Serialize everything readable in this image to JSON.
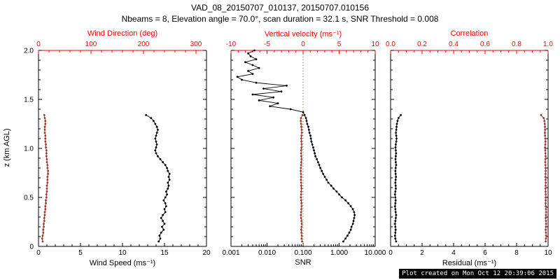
{
  "header": {
    "title": "VAD_08_20150707_010137, 20150707.010156",
    "subtitle": "Nbeams = 8, Elevation angle = 70.0°, scan duration = 32.1 s, SNR Threshold = 0.008"
  },
  "footer": {
    "text": "Plot created on Mon Oct 12 20:39:06 2015"
  },
  "colors": {
    "axis_red": "#ff0000",
    "data_black": "#000000",
    "data_red": "#a0342a",
    "ref_line_red": "#cc4422"
  },
  "chart_data": [
    {
      "type": "line",
      "name": "wind-speed-and-direction-profile",
      "y_axis": {
        "label": "z (km AGL)",
        "range": [
          0,
          2
        ],
        "ticks": [
          0,
          0.5,
          1,
          1.5,
          2
        ],
        "tick_labels": [
          "0",
          "0.5",
          "1.0",
          "1.5",
          "2.0"
        ],
        "minor_step": 0.1
      },
      "bottom_axis": {
        "label": "Wind Speed (ms⁻¹)",
        "range": [
          0,
          20
        ],
        "ticks": [
          0,
          5,
          10,
          15,
          20
        ],
        "tick_labels": [
          "0",
          "5",
          "10",
          "15",
          "20"
        ],
        "minor_step": 1,
        "color": "#000000"
      },
      "top_axis": {
        "label": "Wind Direction (deg)",
        "range": [
          0,
          320
        ],
        "ticks": [
          0,
          100,
          200,
          300
        ],
        "tick_labels": [
          "0",
          "100",
          "200",
          "300"
        ],
        "minor_step": 20,
        "color": "#ff0000"
      },
      "z": [
        0.05,
        0.08,
        0.11,
        0.14,
        0.17,
        0.2,
        0.23,
        0.26,
        0.29,
        0.32,
        0.35,
        0.38,
        0.41,
        0.44,
        0.47,
        0.5,
        0.53,
        0.56,
        0.59,
        0.62,
        0.65,
        0.68,
        0.71,
        0.74,
        0.77,
        0.8,
        0.83,
        0.86,
        0.89,
        0.92,
        0.95,
        0.98,
        1.01,
        1.04,
        1.07,
        1.1,
        1.13,
        1.16,
        1.19,
        1.22,
        1.25,
        1.28,
        1.31,
        1.34
      ],
      "series": [
        {
          "name": "wind_speed",
          "axis": "bottom",
          "color": "#000000",
          "values": [
            14.3,
            14.5,
            14.4,
            14.6,
            14.9,
            14.7,
            15.0,
            14.8,
            14.6,
            14.8,
            15.1,
            15.0,
            15.2,
            15.1,
            14.9,
            15.1,
            15.3,
            15.2,
            15.4,
            15.5,
            15.4,
            15.6,
            15.5,
            15.6,
            15.4,
            15.3,
            15.1,
            14.8,
            14.5,
            14.2,
            14.0,
            13.9,
            14.0,
            14.1,
            14.0,
            13.9,
            14.0,
            14.1,
            14.2,
            14.1,
            13.9,
            13.7,
            13.4,
            12.8
          ]
        },
        {
          "name": "wind_direction",
          "axis": "top",
          "color": "#a0342a",
          "values": [
            8,
            7,
            8,
            9,
            9,
            10,
            10,
            11,
            11,
            12,
            12,
            13,
            13,
            14,
            14,
            15,
            15,
            16,
            16,
            16,
            17,
            17,
            17,
            18,
            18,
            17,
            17,
            16,
            16,
            15,
            15,
            15,
            14,
            14,
            13,
            13,
            13,
            12,
            12,
            12,
            13,
            13,
            12,
            11
          ]
        }
      ]
    },
    {
      "type": "line",
      "name": "snr-and-vertical-velocity-profile",
      "y_axis": {
        "label": "z (km AGL)",
        "range": [
          0,
          2
        ],
        "ticks": [
          0,
          0.5,
          1,
          1.5,
          2
        ],
        "tick_labels": [
          "0",
          "0.5",
          "1.0",
          "1.5",
          "2.0"
        ],
        "minor_step": 0.1
      },
      "bottom_axis": {
        "label": "SNR",
        "scale": "log",
        "range": [
          0.001,
          10
        ],
        "ticks": [
          0.001,
          0.01,
          0.1,
          1,
          10
        ],
        "tick_labels": [
          "0.001",
          "0.010",
          "0.100",
          "1.000",
          "10.000"
        ],
        "color": "#000000"
      },
      "top_axis": {
        "label": "Vertical velocity (ms⁻¹)",
        "range": [
          -10,
          10
        ],
        "ticks": [
          -10,
          -5,
          0,
          5,
          10
        ],
        "tick_labels": [
          "-10",
          "-5",
          "0",
          "5",
          "10"
        ],
        "minor_step": 1,
        "color": "#ff0000"
      },
      "ref_line": {
        "axis": "top",
        "value": 0,
        "color": "#cc4422",
        "style": "dotted"
      },
      "z": [
        0.05,
        0.08,
        0.11,
        0.14,
        0.17,
        0.2,
        0.23,
        0.26,
        0.29,
        0.32,
        0.35,
        0.38,
        0.41,
        0.44,
        0.47,
        0.5,
        0.53,
        0.56,
        0.59,
        0.62,
        0.65,
        0.68,
        0.71,
        0.74,
        0.77,
        0.8,
        0.83,
        0.86,
        0.89,
        0.92,
        0.95,
        0.98,
        1.01,
        1.04,
        1.07,
        1.1,
        1.13,
        1.16,
        1.19,
        1.22,
        1.25,
        1.28,
        1.31,
        1.34
      ],
      "series": [
        {
          "name": "snr",
          "axis": "bottom",
          "color": "#000000",
          "z": [
            0.05,
            0.08,
            0.11,
            0.14,
            0.17,
            0.2,
            0.23,
            0.26,
            0.29,
            0.32,
            0.35,
            0.38,
            0.41,
            0.44,
            0.47,
            0.5,
            0.53,
            0.56,
            0.59,
            0.62,
            0.65,
            0.68,
            0.71,
            0.74,
            0.77,
            0.8,
            0.83,
            0.86,
            0.89,
            0.92,
            0.95,
            0.98,
            1.01,
            1.04,
            1.07,
            1.1,
            1.13,
            1.16,
            1.19,
            1.22,
            1.25,
            1.28,
            1.31,
            1.34,
            1.37,
            1.4,
            1.43,
            1.46,
            1.49,
            1.52,
            1.55,
            1.58,
            1.61,
            1.64,
            1.67,
            1.7,
            1.73,
            1.76,
            1.79,
            1.82,
            1.85,
            1.88,
            1.91,
            1.94,
            1.97,
            2.0
          ],
          "values": [
            1.3,
            1.5,
            1.7,
            1.9,
            2.1,
            2.2,
            2.4,
            2.5,
            2.6,
            2.7,
            2.6,
            2.4,
            2.1,
            1.8,
            1.5,
            1.2,
            1.0,
            0.85,
            0.7,
            0.6,
            0.5,
            0.45,
            0.4,
            0.36,
            0.33,
            0.3,
            0.28,
            0.26,
            0.24,
            0.22,
            0.21,
            0.2,
            0.19,
            0.18,
            0.17,
            0.165,
            0.16,
            0.15,
            0.145,
            0.14,
            0.13,
            0.125,
            0.12,
            0.11,
            0.1,
            0.045,
            0.012,
            0.02,
            0.006,
            0.015,
            0.004,
            0.025,
            0.008,
            0.035,
            0.005,
            0.002,
            0.0015,
            0.004,
            0.003,
            0.006,
            0.004,
            0.0025,
            0.005,
            0.0035,
            0.003,
            0.0045
          ]
        },
        {
          "name": "vertical_velocity",
          "axis": "top",
          "color": "#a0342a",
          "values": [
            -0.15,
            -0.2,
            -0.18,
            -0.22,
            -0.25,
            -0.2,
            -0.18,
            -0.22,
            -0.28,
            -0.3,
            -0.27,
            -0.24,
            -0.2,
            -0.22,
            -0.26,
            -0.3,
            -0.28,
            -0.25,
            -0.22,
            -0.25,
            -0.28,
            -0.3,
            -0.27,
            -0.3,
            -0.32,
            -0.3,
            -0.27,
            -0.25,
            -0.22,
            -0.25,
            -0.28,
            -0.25,
            -0.22,
            -0.2,
            -0.23,
            -0.26,
            -0.22,
            -0.18,
            -0.2,
            -0.24,
            -0.28,
            -0.32,
            -0.3,
            -0.1
          ]
        }
      ]
    },
    {
      "type": "line",
      "name": "residual-and-correlation-profile",
      "y_axis": {
        "label": "z (km AGL)",
        "range": [
          0,
          2
        ],
        "ticks": [
          0,
          0.5,
          1,
          1.5,
          2
        ],
        "tick_labels": [
          "0",
          "0.5",
          "1.0",
          "1.5",
          "2.0"
        ],
        "minor_step": 0.1
      },
      "bottom_axis": {
        "label": "Residual (ms⁻¹)",
        "range": [
          0,
          10
        ],
        "ticks": [
          0,
          2,
          4,
          6,
          8,
          10
        ],
        "tick_labels": [
          "0",
          "2",
          "4",
          "6",
          "8",
          "10"
        ],
        "minor_step": 0.5,
        "color": "#000000"
      },
      "top_axis": {
        "label": "Correlation",
        "range": [
          0,
          1
        ],
        "ticks": [
          0,
          0.2,
          0.4,
          0.6,
          0.8,
          1
        ],
        "tick_labels": [
          "0.0",
          "0.2",
          "0.4",
          "0.6",
          "0.8",
          "1.0"
        ],
        "minor_step": 0.05,
        "color": "#ff0000"
      },
      "z": [
        0.05,
        0.08,
        0.11,
        0.14,
        0.17,
        0.2,
        0.23,
        0.26,
        0.29,
        0.32,
        0.35,
        0.38,
        0.41,
        0.44,
        0.47,
        0.5,
        0.53,
        0.56,
        0.59,
        0.62,
        0.65,
        0.68,
        0.71,
        0.74,
        0.77,
        0.8,
        0.83,
        0.86,
        0.89,
        0.92,
        0.95,
        0.98,
        1.01,
        1.04,
        1.07,
        1.1,
        1.13,
        1.16,
        1.19,
        1.22,
        1.25,
        1.28,
        1.31,
        1.34
      ],
      "series": [
        {
          "name": "residual",
          "axis": "bottom",
          "color": "#000000",
          "values": [
            0.35,
            0.3,
            0.28,
            0.3,
            0.32,
            0.3,
            0.28,
            0.3,
            0.33,
            0.35,
            0.32,
            0.3,
            0.28,
            0.3,
            0.32,
            0.3,
            0.28,
            0.3,
            0.33,
            0.32,
            0.3,
            0.32,
            0.34,
            0.32,
            0.3,
            0.32,
            0.35,
            0.33,
            0.31,
            0.33,
            0.35,
            0.33,
            0.31,
            0.33,
            0.36,
            0.38,
            0.36,
            0.34,
            0.36,
            0.38,
            0.4,
            0.44,
            0.5,
            0.65
          ]
        },
        {
          "name": "correlation",
          "axis": "top",
          "color": "#a0342a",
          "values": [
            0.985,
            0.986,
            0.987,
            0.986,
            0.985,
            0.986,
            0.987,
            0.986,
            0.985,
            0.986,
            0.987,
            0.986,
            0.985,
            0.984,
            0.985,
            0.986,
            0.985,
            0.984,
            0.983,
            0.984,
            0.985,
            0.984,
            0.983,
            0.984,
            0.985,
            0.984,
            0.983,
            0.982,
            0.983,
            0.984,
            0.983,
            0.982,
            0.981,
            0.982,
            0.983,
            0.982,
            0.981,
            0.98,
            0.981,
            0.98,
            0.979,
            0.977,
            0.972,
            0.955
          ]
        }
      ]
    }
  ]
}
